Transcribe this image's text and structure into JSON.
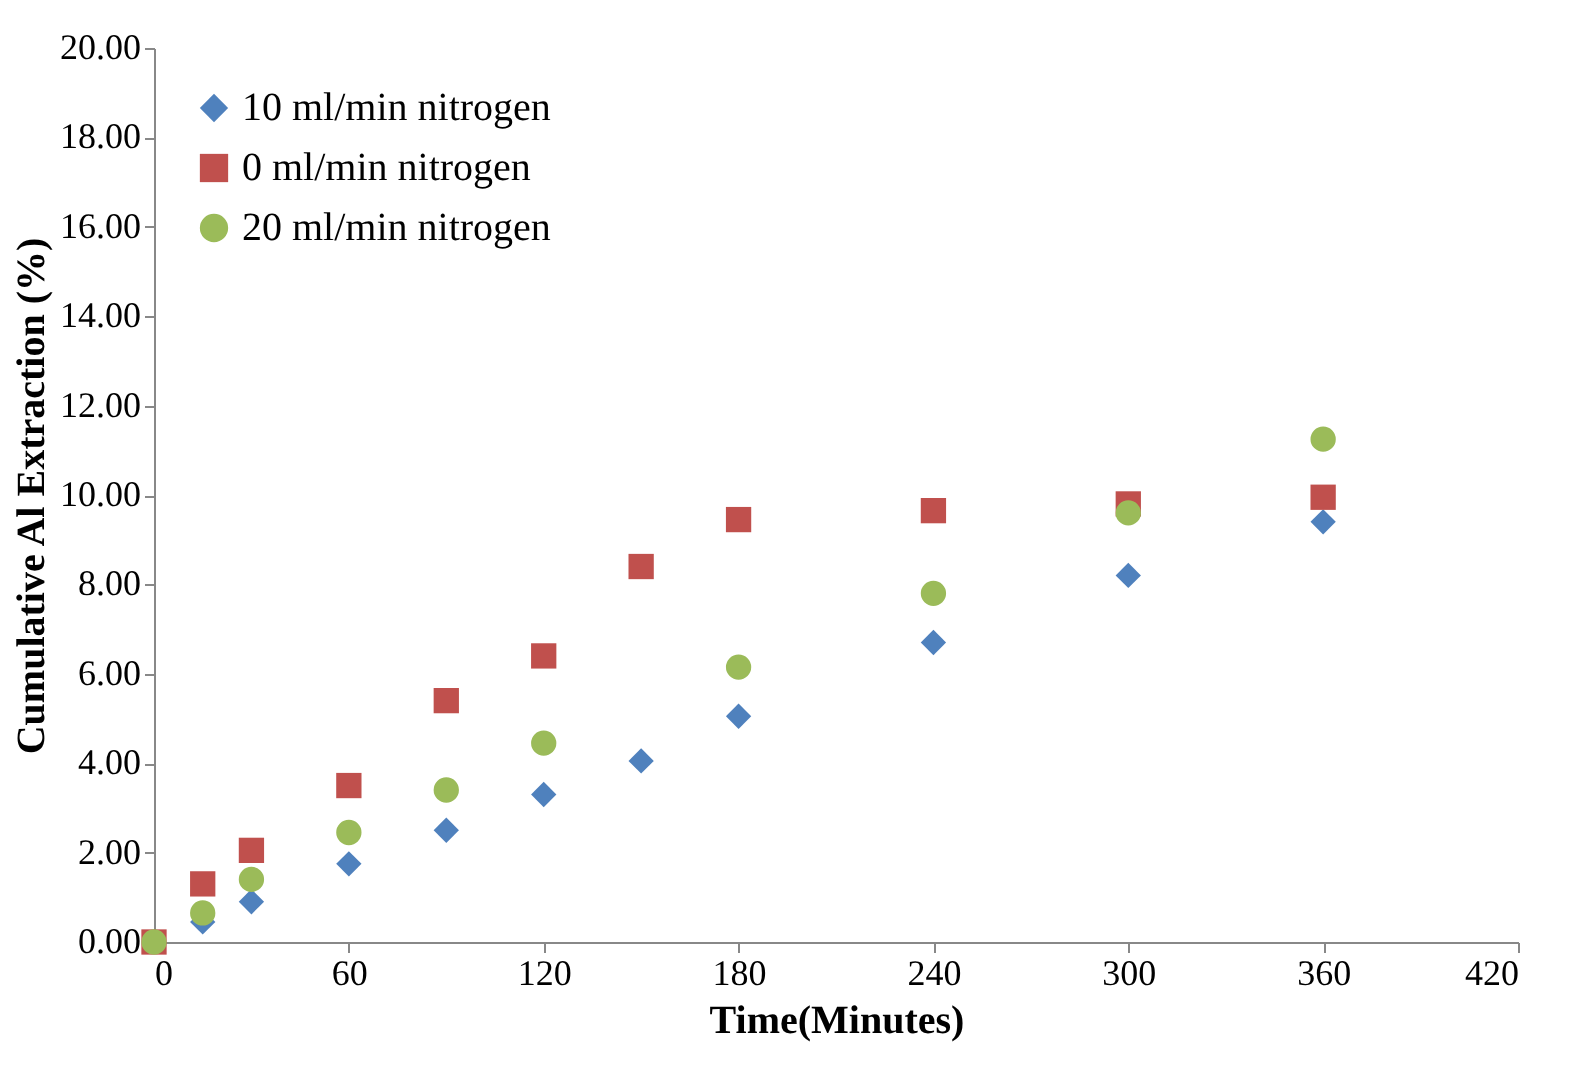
{
  "chart_data": {
    "type": "scatter",
    "xlabel": "Time(Minutes)",
    "ylabel": "Cumulative Al Extraction (%)",
    "xlim": [
      0,
      420
    ],
    "xticks": [
      0,
      60,
      120,
      180,
      240,
      300,
      360,
      420
    ],
    "ylim": [
      0,
      20
    ],
    "yticks": [
      {
        "value": 0,
        "label": "0.00"
      },
      {
        "value": 2,
        "label": "2.00"
      },
      {
        "value": 4,
        "label": "4.00"
      },
      {
        "value": 6,
        "label": "6.00"
      },
      {
        "value": 8,
        "label": "8.00"
      },
      {
        "value": 10,
        "label": "10.00"
      },
      {
        "value": 12,
        "label": "12.00"
      },
      {
        "value": 14,
        "label": "14.00"
      },
      {
        "value": 16,
        "label": "16.00"
      },
      {
        "value": 18,
        "label": "18.00"
      },
      {
        "value": 20,
        "label": "20.00"
      }
    ],
    "grid": false,
    "legend": "top left",
    "series": [
      {
        "name": "10 ml/min nitrogen",
        "color": "#4f81bd",
        "marker": "diamond",
        "x": [
          15,
          30,
          60,
          90,
          120,
          150,
          180,
          240,
          300,
          360
        ],
        "values": [
          0.45,
          0.9,
          1.75,
          2.5,
          3.3,
          4.05,
          5.05,
          6.7,
          8.2,
          9.4
        ]
      },
      {
        "name": "0 ml/min nitrogen",
        "color": "#c0504d",
        "marker": "square",
        "x": [
          0,
          15,
          30,
          60,
          90,
          120,
          150,
          180,
          240,
          300,
          360
        ],
        "values": [
          0,
          1.3,
          2.05,
          3.5,
          5.4,
          6.4,
          8.4,
          9.45,
          9.65,
          9.8,
          9.95
        ]
      },
      {
        "name": "20 ml/min nitrogen",
        "color": "#9bbb59",
        "marker": "circle",
        "x": [
          0,
          15,
          30,
          60,
          90,
          120,
          180,
          240,
          300,
          360
        ],
        "values": [
          0,
          0.65,
          1.4,
          2.45,
          3.4,
          4.45,
          6.15,
          7.8,
          9.6,
          11.25
        ]
      }
    ]
  }
}
